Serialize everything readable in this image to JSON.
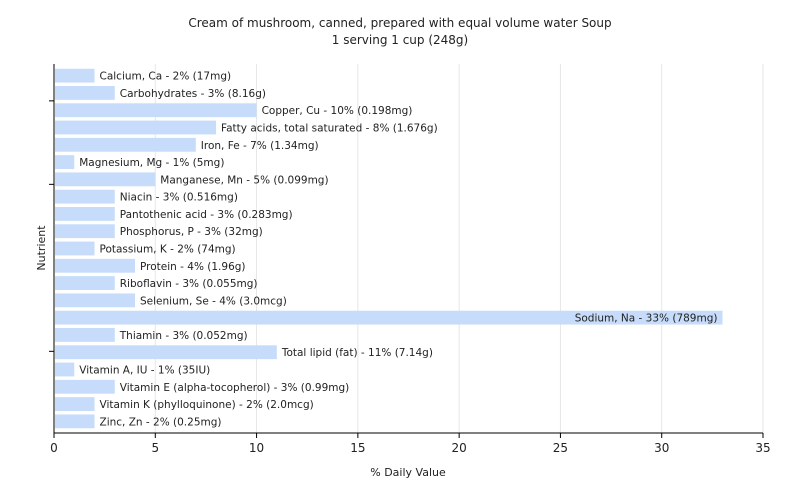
{
  "chart_data": {
    "type": "bar",
    "orientation": "horizontal",
    "title": "Cream of mushroom, canned, prepared with equal volume water Soup",
    "subtitle": "1 serving 1 cup (248g)",
    "xlabel": "% Daily Value",
    "ylabel": "Nutrient",
    "xlim": [
      0,
      35
    ],
    "xticks": [
      0,
      5,
      10,
      15,
      20,
      25,
      30,
      35
    ],
    "grid": true,
    "bar_color": "#c6dcfa",
    "categories": [
      "Calcium, Ca",
      "Carbohydrates",
      "Copper, Cu",
      "Fatty acids, total saturated",
      "Iron, Fe",
      "Magnesium, Mg",
      "Manganese, Mn",
      "Niacin",
      "Pantothenic acid",
      "Phosphorus, P",
      "Potassium, K",
      "Protein",
      "Riboflavin",
      "Selenium, Se",
      "Sodium, Na",
      "Thiamin",
      "Total lipid (fat)",
      "Vitamin A, IU",
      "Vitamin E (alpha-tocopherol)",
      "Vitamin K (phylloquinone)",
      "Zinc, Zn"
    ],
    "values": [
      2,
      3,
      10,
      8,
      7,
      1,
      5,
      3,
      3,
      3,
      2,
      4,
      3,
      4,
      33,
      3,
      11,
      1,
      3,
      2,
      2
    ],
    "labels": [
      "Calcium, Ca - 2% (17mg)",
      "Carbohydrates - 3% (8.16g)",
      "Copper, Cu - 10% (0.198mg)",
      "Fatty acids, total saturated - 8% (1.676g)",
      "Iron, Fe - 7% (1.34mg)",
      "Magnesium, Mg - 1% (5mg)",
      "Manganese, Mn - 5% (0.099mg)",
      "Niacin - 3% (0.516mg)",
      "Pantothenic acid - 3% (0.283mg)",
      "Phosphorus, P - 3% (32mg)",
      "Potassium, K - 2% (74mg)",
      "Protein - 4% (1.96g)",
      "Riboflavin - 3% (0.055mg)",
      "Selenium, Se - 4% (3.0mcg)",
      "Sodium, Na - 33% (789mg)",
      "Thiamin - 3% (0.052mg)",
      "Total lipid (fat) - 11% (7.14g)",
      "Vitamin A, IU - 1% (35IU)",
      "Vitamin E (alpha-tocopherol) - 3% (0.99mg)",
      "Vitamin K (phylloquinone) - 2% (2.0mcg)",
      "Zinc, Zn - 2% (0.25mg)"
    ]
  }
}
